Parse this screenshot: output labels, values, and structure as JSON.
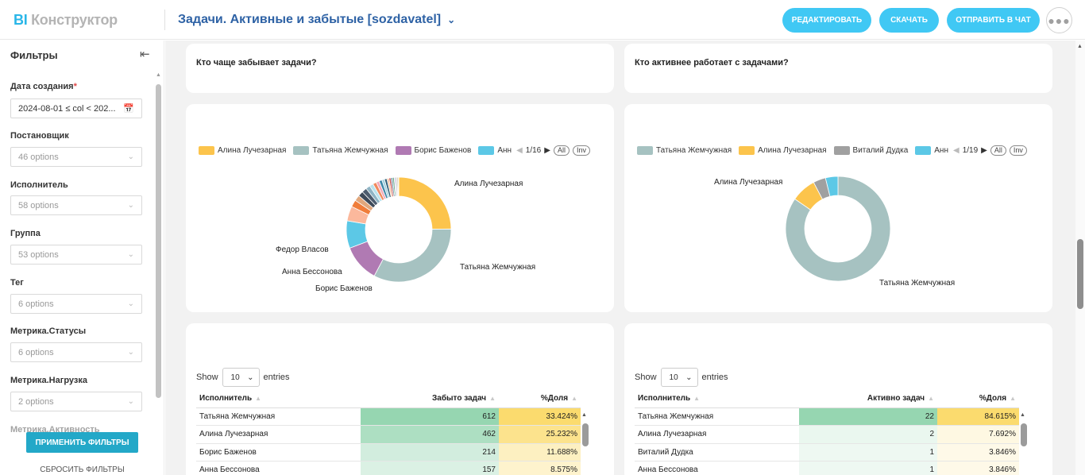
{
  "header": {
    "logo_prefix": "BI",
    "logo_rest": "Конструктор",
    "title": "Задачи. Активные и забытые [sozdavatel]",
    "buttons": {
      "edit": "Редактировать",
      "download": "Скачать",
      "send": "Отправить в чат"
    },
    "more_icon": "ellipsis-icon"
  },
  "sidebar": {
    "title": "Фильтры",
    "filters": [
      {
        "label": "Дата создания",
        "required": true,
        "value": "2024-08-01 ≤ col < 202..."
      },
      {
        "label": "Постановщик",
        "value": "46 options"
      },
      {
        "label": "Исполнитель",
        "value": "58 options"
      },
      {
        "label": "Группа",
        "value": "53 options"
      },
      {
        "label": "Тег",
        "value": "6 options"
      },
      {
        "label": "Метрика.Статусы",
        "value": "6 options"
      },
      {
        "label": "Метрика.Нагрузка",
        "value": "2 options"
      },
      {
        "label": "Метрика.Активность"
      }
    ],
    "apply": "Применить фильтры",
    "reset": "Сбросить фильтры"
  },
  "cards": {
    "left_title": "Кто чаще забывает задачи?",
    "right_title": "Кто активнее работает с задачами?"
  },
  "colors": {
    "accent": "#40c8f4",
    "title_blue": "#2e62a5",
    "green_cell": "#b2e2c6",
    "yellow_cell": "#fbe38a"
  },
  "chart_data": [
    {
      "type": "pie",
      "donut": true,
      "legend": {
        "items": [
          {
            "name": "Алина Лучезарная",
            "color": "#fcc44c"
          },
          {
            "name": "Татьяна Жемчужная",
            "color": "#a6c2c1"
          },
          {
            "name": "Борис Баженов",
            "color": "#b07ab3"
          },
          {
            "name": "Анн",
            "color": "#5cc8e6"
          }
        ],
        "page": "1/16",
        "all": "All",
        "inv": "Inv"
      },
      "labels_shown": [
        "Алина Лучезарная",
        "Татьяна Жемчужная",
        "Борис Баженов",
        "Анна Бессонова",
        "Федор Власов"
      ],
      "slices": [
        {
          "name": "Алина Лучезарная",
          "value": 462,
          "color": "#fcc44c"
        },
        {
          "name": "Татьяна Жемчужная",
          "value": 612,
          "color": "#a6c2c1"
        },
        {
          "name": "Борис Баженов",
          "value": 214,
          "color": "#b07ab3"
        },
        {
          "name": "Анна Бессонова",
          "value": 157,
          "color": "#5cc8e6"
        },
        {
          "name": "Федор Власов",
          "value": 85,
          "color": "#fbb89c"
        },
        {
          "name": "",
          "value": 40,
          "color": "#f07d3a"
        },
        {
          "name": "",
          "value": 33,
          "color": "#e1a77c"
        },
        {
          "name": "",
          "value": 30,
          "color": "#3e4a59"
        },
        {
          "name": "",
          "value": 28,
          "color": "#4d5c6e"
        },
        {
          "name": "",
          "value": 25,
          "color": "#8fb4c4"
        },
        {
          "name": "",
          "value": 22,
          "color": "#b9e3ee"
        },
        {
          "name": "",
          "value": 20,
          "color": "#f08a5d"
        },
        {
          "name": "",
          "value": 18,
          "color": "#f2a9b8"
        },
        {
          "name": "",
          "value": 17,
          "color": "#3d88a8"
        },
        {
          "name": "",
          "value": 15,
          "color": "#a5d3e0"
        },
        {
          "name": "",
          "value": 14,
          "color": "#2e5e77"
        },
        {
          "name": "",
          "value": 12,
          "color": "#f7c4a0"
        },
        {
          "name": "",
          "value": 11,
          "color": "#c94f4f"
        },
        {
          "name": "",
          "value": 10,
          "color": "#6a8fa6"
        },
        {
          "name": "",
          "value": 9,
          "color": "#5da67c"
        },
        {
          "name": "",
          "value": 8,
          "color": "#d8c8e6"
        },
        {
          "name": "",
          "value": 7,
          "color": "#9aa5b1"
        },
        {
          "name": "",
          "value": 6,
          "color": "#c4a46b"
        },
        {
          "name": "",
          "value": 5,
          "color": "#d0d8c0"
        }
      ]
    },
    {
      "type": "pie",
      "donut": true,
      "legend": {
        "items": [
          {
            "name": "Татьяна Жемчужная",
            "color": "#a6c2c1"
          },
          {
            "name": "Алина Лучезарная",
            "color": "#fcc44c"
          },
          {
            "name": "Виталий Дудка",
            "color": "#a0a0a0"
          },
          {
            "name": "Анн",
            "color": "#5cc8e6"
          }
        ],
        "page": "1/19",
        "all": "All",
        "inv": "Inv"
      },
      "labels_shown": [
        "Алина Лучезарная",
        "Татьяна Жемчужная"
      ],
      "slices": [
        {
          "name": "Татьяна Жемчужная",
          "value": 22,
          "color": "#a6c2c1"
        },
        {
          "name": "Алина Лучезарная",
          "value": 2,
          "color": "#fcc44c"
        },
        {
          "name": "Виталий Дудка",
          "value": 1,
          "color": "#a0a0a0"
        },
        {
          "name": "Анна Бессонова",
          "value": 1,
          "color": "#5cc8e6"
        }
      ]
    },
    {
      "type": "table",
      "show_label": "Show",
      "entries_label": "entries",
      "page_size": "10",
      "columns": [
        "Исполнитель",
        "Забыто задач",
        "%Доля"
      ],
      "rows": [
        [
          "Татьяна Жемчужная",
          612,
          "33.424%"
        ],
        [
          "Алина Лучезарная",
          462,
          "25.232%"
        ],
        [
          "Борис Баженов",
          214,
          "11.688%"
        ],
        [
          "Анна Бессонова",
          157,
          "8.575%"
        ]
      ]
    },
    {
      "type": "table",
      "show_label": "Show",
      "entries_label": "entries",
      "page_size": "10",
      "columns": [
        "Исполнитель",
        "Активно задач",
        "%Доля"
      ],
      "rows": [
        [
          "Татьяна Жемчужная",
          22,
          "84.615%"
        ],
        [
          "Алина Лучезарная",
          2,
          "7.692%"
        ],
        [
          "Виталий Дудка",
          1,
          "3.846%"
        ],
        [
          "Анна Бессонова",
          1,
          "3.846%"
        ]
      ]
    }
  ]
}
